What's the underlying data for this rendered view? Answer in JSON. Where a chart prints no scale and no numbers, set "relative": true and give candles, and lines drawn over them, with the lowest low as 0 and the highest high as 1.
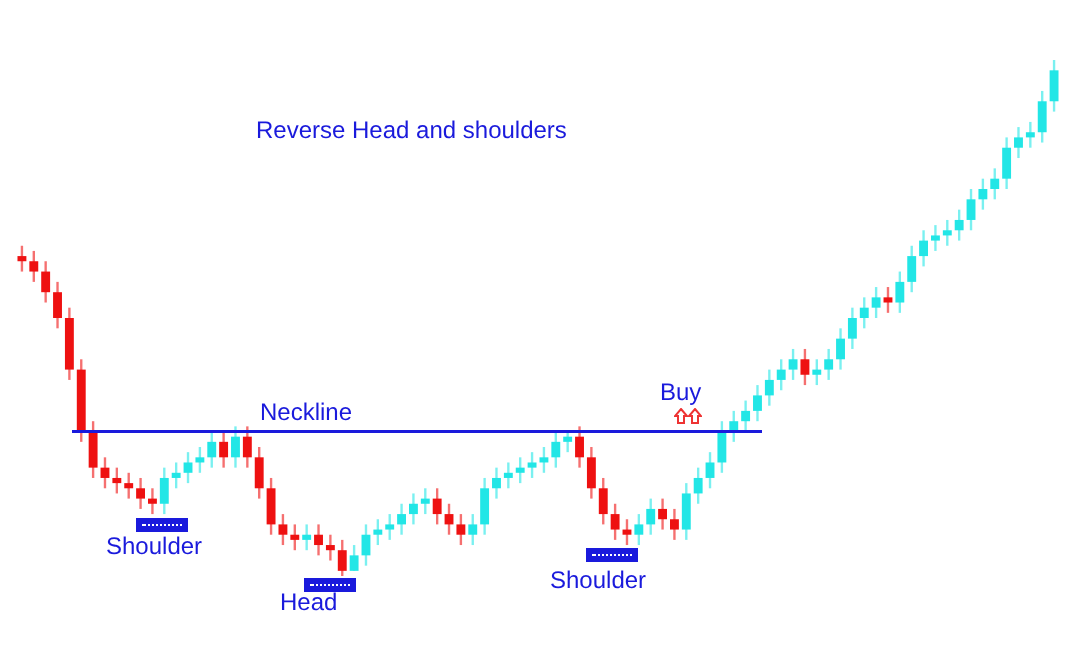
{
  "chart_data": {
    "type": "candlestick",
    "title": "Reverse Head and shoulders",
    "relative": true,
    "categories": [
      null,
      null,
      null,
      null,
      null,
      null,
      null,
      null,
      null,
      null,
      null,
      null,
      null,
      null,
      null,
      null,
      null,
      null,
      null,
      null,
      null,
      null,
      null,
      null,
      null,
      null,
      null,
      null,
      null,
      null,
      null,
      null,
      null,
      null,
      null,
      null,
      null,
      null,
      null,
      null,
      null,
      null,
      null,
      null,
      null,
      null,
      null,
      null,
      null,
      null,
      null,
      null,
      null,
      null,
      null,
      null,
      null,
      null,
      null,
      null,
      null,
      null,
      null,
      null,
      null,
      null,
      null,
      null,
      null,
      null,
      null,
      null,
      null,
      null,
      null,
      null,
      null,
      null,
      null,
      null,
      null,
      null,
      null,
      null,
      null,
      null,
      null,
      null
    ],
    "ohlc": [
      [
        0.62,
        0.64,
        0.59,
        0.61
      ],
      [
        0.61,
        0.63,
        0.57,
        0.59
      ],
      [
        0.59,
        0.61,
        0.53,
        0.55
      ],
      [
        0.55,
        0.57,
        0.48,
        0.5
      ],
      [
        0.5,
        0.52,
        0.38,
        0.4
      ],
      [
        0.4,
        0.42,
        0.26,
        0.28
      ],
      [
        0.28,
        0.3,
        0.19,
        0.21
      ],
      [
        0.21,
        0.23,
        0.17,
        0.19
      ],
      [
        0.19,
        0.21,
        0.16,
        0.18
      ],
      [
        0.18,
        0.2,
        0.15,
        0.17
      ],
      [
        0.17,
        0.19,
        0.13,
        0.15
      ],
      [
        0.15,
        0.17,
        0.12,
        0.14
      ],
      [
        0.14,
        0.21,
        0.12,
        0.19
      ],
      [
        0.19,
        0.22,
        0.17,
        0.2
      ],
      [
        0.2,
        0.24,
        0.18,
        0.22
      ],
      [
        0.22,
        0.25,
        0.2,
        0.23
      ],
      [
        0.23,
        0.28,
        0.21,
        0.26
      ],
      [
        0.26,
        0.28,
        0.21,
        0.23
      ],
      [
        0.23,
        0.29,
        0.21,
        0.27
      ],
      [
        0.27,
        0.29,
        0.21,
        0.23
      ],
      [
        0.23,
        0.25,
        0.15,
        0.17
      ],
      [
        0.17,
        0.19,
        0.08,
        0.1
      ],
      [
        0.1,
        0.12,
        0.06,
        0.08
      ],
      [
        0.08,
        0.1,
        0.05,
        0.07
      ],
      [
        0.07,
        0.1,
        0.05,
        0.08
      ],
      [
        0.08,
        0.1,
        0.04,
        0.06
      ],
      [
        0.06,
        0.08,
        0.03,
        0.05
      ],
      [
        0.05,
        0.07,
        0,
        0.01
      ],
      [
        0.01,
        0.06,
        0.01,
        0.04
      ],
      [
        0.04,
        0.1,
        0.02,
        0.08
      ],
      [
        0.08,
        0.11,
        0.06,
        0.09
      ],
      [
        0.09,
        0.12,
        0.07,
        0.1
      ],
      [
        0.1,
        0.14,
        0.08,
        0.12
      ],
      [
        0.12,
        0.16,
        0.1,
        0.14
      ],
      [
        0.14,
        0.17,
        0.12,
        0.15
      ],
      [
        0.15,
        0.17,
        0.1,
        0.12
      ],
      [
        0.12,
        0.14,
        0.08,
        0.1
      ],
      [
        0.1,
        0.12,
        0.06,
        0.08
      ],
      [
        0.08,
        0.12,
        0.06,
        0.1
      ],
      [
        0.1,
        0.19,
        0.08,
        0.17
      ],
      [
        0.17,
        0.21,
        0.15,
        0.19
      ],
      [
        0.19,
        0.22,
        0.17,
        0.2
      ],
      [
        0.2,
        0.23,
        0.18,
        0.21
      ],
      [
        0.21,
        0.24,
        0.19,
        0.22
      ],
      [
        0.22,
        0.25,
        0.2,
        0.23
      ],
      [
        0.23,
        0.28,
        0.21,
        0.26
      ],
      [
        0.26,
        0.28,
        0.24,
        0.27
      ],
      [
        0.27,
        0.29,
        0.21,
        0.23
      ],
      [
        0.23,
        0.25,
        0.15,
        0.17
      ],
      [
        0.17,
        0.19,
        0.1,
        0.12
      ],
      [
        0.12,
        0.14,
        0.07,
        0.09
      ],
      [
        0.09,
        0.11,
        0.06,
        0.08
      ],
      [
        0.08,
        0.12,
        0.06,
        0.1
      ],
      [
        0.1,
        0.15,
        0.08,
        0.13
      ],
      [
        0.13,
        0.15,
        0.09,
        0.11
      ],
      [
        0.11,
        0.13,
        0.07,
        0.09
      ],
      [
        0.09,
        0.18,
        0.07,
        0.16
      ],
      [
        0.16,
        0.21,
        0.14,
        0.19
      ],
      [
        0.19,
        0.24,
        0.17,
        0.22
      ],
      [
        0.22,
        0.3,
        0.2,
        0.28
      ],
      [
        0.28,
        0.32,
        0.26,
        0.3
      ],
      [
        0.3,
        0.34,
        0.28,
        0.32
      ],
      [
        0.32,
        0.37,
        0.3,
        0.35
      ],
      [
        0.35,
        0.4,
        0.33,
        0.38
      ],
      [
        0.38,
        0.42,
        0.36,
        0.4
      ],
      [
        0.4,
        0.44,
        0.38,
        0.42
      ],
      [
        0.42,
        0.44,
        0.37,
        0.39
      ],
      [
        0.39,
        0.42,
        0.37,
        0.4
      ],
      [
        0.4,
        0.44,
        0.38,
        0.42
      ],
      [
        0.42,
        0.48,
        0.4,
        0.46
      ],
      [
        0.46,
        0.52,
        0.44,
        0.5
      ],
      [
        0.5,
        0.54,
        0.48,
        0.52
      ],
      [
        0.52,
        0.56,
        0.5,
        0.54
      ],
      [
        0.54,
        0.56,
        0.51,
        0.53
      ],
      [
        0.53,
        0.59,
        0.51,
        0.57
      ],
      [
        0.57,
        0.64,
        0.55,
        0.62
      ],
      [
        0.62,
        0.67,
        0.6,
        0.65
      ],
      [
        0.65,
        0.68,
        0.63,
        0.66
      ],
      [
        0.66,
        0.69,
        0.64,
        0.67
      ],
      [
        0.67,
        0.71,
        0.65,
        0.69
      ],
      [
        0.69,
        0.75,
        0.67,
        0.73
      ],
      [
        0.73,
        0.77,
        0.71,
        0.75
      ],
      [
        0.75,
        0.79,
        0.73,
        0.77
      ],
      [
        0.77,
        0.85,
        0.75,
        0.83
      ],
      [
        0.83,
        0.87,
        0.81,
        0.85
      ],
      [
        0.85,
        0.88,
        0.83,
        0.86
      ],
      [
        0.86,
        0.94,
        0.84,
        0.92
      ],
      [
        0.92,
        1,
        0.9,
        0.98
      ]
    ],
    "ref_lines": [
      {
        "axis": "y",
        "value": 0.28,
        "label": "Neckline"
      }
    ],
    "annotations": [
      "Shoulder",
      "Head",
      "Shoulder",
      "Buy"
    ]
  }
}
